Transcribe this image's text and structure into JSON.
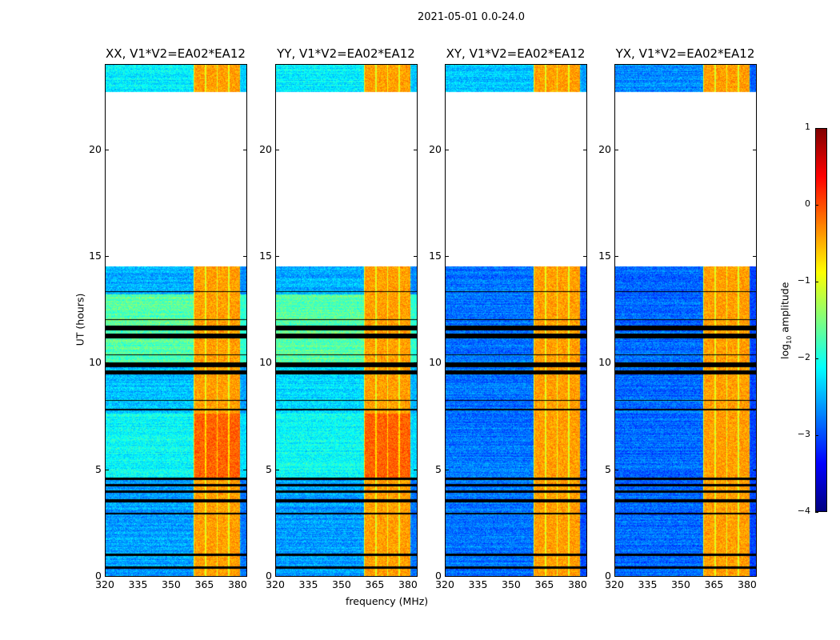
{
  "suptitle": "2021-05-01 0.0-24.0",
  "ylabel": "UT (hours)",
  "xlabel": "frequency (MHz)",
  "colorbar": {
    "label_prefix": "log",
    "label_sub": "10",
    "label_suffix": " amplitude",
    "range": [
      -4,
      1
    ],
    "ticks": [
      "1",
      "0",
      "−1",
      "−2",
      "−3",
      "−4"
    ],
    "tick_values": [
      1,
      0,
      -1,
      -2,
      -3,
      -4
    ],
    "colormap": "jet"
  },
  "chart_data": {
    "type": "heatmap",
    "title": "2021-05-01 0.0-24.0",
    "xlabel": "frequency (MHz)",
    "ylabel": "UT (hours)",
    "xlim": [
      320,
      384
    ],
    "ylim": [
      0,
      24
    ],
    "xticks": [
      "320",
      "335",
      "350",
      "365",
      "380"
    ],
    "xtick_values": [
      320,
      335,
      350,
      365,
      380
    ],
    "yticks": [
      "0",
      "5",
      "10",
      "15",
      "20"
    ],
    "ytick_values": [
      0,
      5,
      10,
      15,
      20
    ],
    "value_label": "log10 amplitude",
    "value_range": [
      -4,
      1
    ],
    "data_gap_hours": [
      [
        14.5,
        22.7
      ]
    ],
    "flagged_hours": [
      [
        0.35,
        0.45
      ],
      [
        0.95,
        1.05
      ],
      [
        2.9,
        2.95
      ],
      [
        3.45,
        3.6
      ],
      [
        3.9,
        4.0
      ],
      [
        4.2,
        4.3
      ],
      [
        4.5,
        4.6
      ],
      [
        7.75,
        7.85
      ],
      [
        8.2,
        8.25
      ],
      [
        9.45,
        9.65
      ],
      [
        9.8,
        10.0
      ],
      [
        10.35,
        10.4
      ],
      [
        11.15,
        11.35
      ],
      [
        11.5,
        11.75
      ],
      [
        12.0,
        12.05
      ],
      [
        13.3,
        13.35
      ]
    ],
    "bright_band_mhz": [
      360,
      381
    ],
    "bright_band_level": -0.4,
    "panels": [
      {
        "title": "XX, V1*V2=EA02*EA12",
        "segments": [
          {
            "hours": [
              0,
              4.6
            ],
            "level": -2.6
          },
          {
            "hours": [
              4.6,
              7.6
            ],
            "level": -2.1
          },
          {
            "hours": [
              7.6,
              10.0
            ],
            "level": -2.4
          },
          {
            "hours": [
              10.0,
              13.2
            ],
            "level": -1.7
          },
          {
            "hours": [
              13.2,
              14.5
            ],
            "level": -2.5
          },
          {
            "hours": [
              22.7,
              24
            ],
            "level": -2.2
          }
        ]
      },
      {
        "title": "YY, V1*V2=EA02*EA12",
        "segments": [
          {
            "hours": [
              0,
              4.6
            ],
            "level": -2.6
          },
          {
            "hours": [
              4.6,
              7.6
            ],
            "level": -2.1
          },
          {
            "hours": [
              7.6,
              10.0
            ],
            "level": -2.3
          },
          {
            "hours": [
              10.0,
              13.2
            ],
            "level": -1.7
          },
          {
            "hours": [
              13.2,
              14.5
            ],
            "level": -2.5
          },
          {
            "hours": [
              22.7,
              24
            ],
            "level": -2.2
          }
        ]
      },
      {
        "title": "XY, V1*V2=EA02*EA12",
        "segments": [
          {
            "hours": [
              0,
              14.5
            ],
            "level": -2.8
          },
          {
            "hours": [
              22.7,
              24
            ],
            "level": -2.4
          }
        ]
      },
      {
        "title": "YX, V1*V2=EA02*EA12",
        "segments": [
          {
            "hours": [
              0,
              14.5
            ],
            "level": -2.85
          },
          {
            "hours": [
              22.7,
              24
            ],
            "level": -2.7
          }
        ]
      }
    ]
  }
}
